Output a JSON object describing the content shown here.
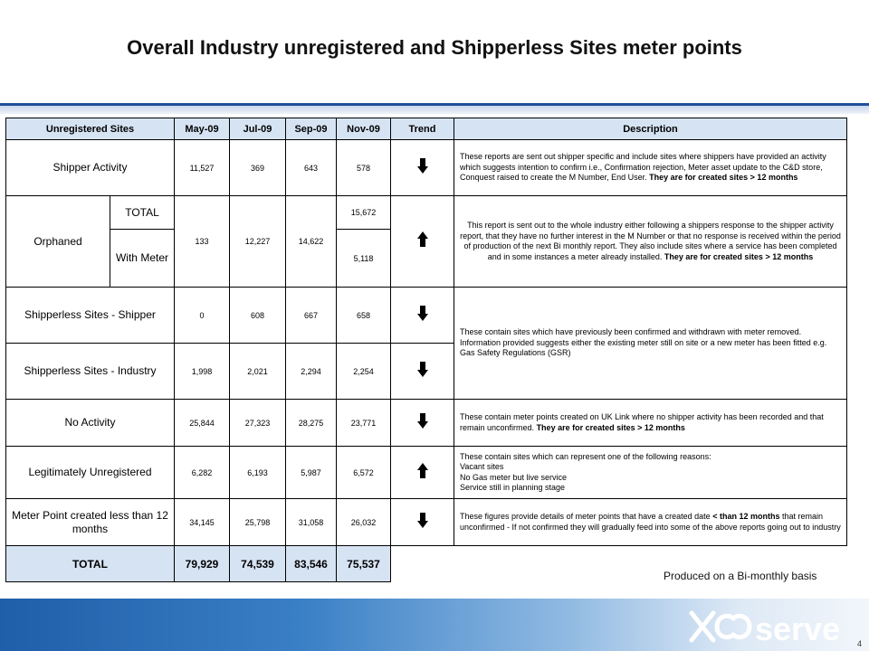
{
  "title": "Overall Industry unregistered and Shipperless Sites meter points",
  "headers": {
    "sites": "Unregistered  Sites",
    "months": [
      "May-09",
      "Jul-09",
      "Sep-09",
      "Nov-09"
    ],
    "trend": "Trend",
    "description": "Description"
  },
  "rows": {
    "shipper_activity": {
      "label": "Shipper Activity",
      "values": [
        "11,527",
        "369",
        "643",
        "578"
      ],
      "trend": "down-arrow-icon",
      "desc": "These reports are sent out shipper specific and include sites where shippers have provided an activity which suggests intention to confirm i.e., Confirmation rejection, Meter asset update to the C&D store, Conquest raised to create the M Number, End User.",
      "desc_bold": "They are for created sites > 12 months"
    },
    "orphaned": {
      "label": "Orphaned",
      "sub_total": "TOTAL",
      "sub_meter": "With Meter",
      "may": "133",
      "jul": "12,227",
      "sep": "14,622",
      "nov_total": "15,672",
      "nov_meter": "5,118",
      "trend": "up-arrow-icon",
      "desc": "This report is sent out to the whole industry either following a shippers response to the shipper activity report, that they have no further interest in the M Number or that no response is received within the period of production of the next Bi monthly report. They also include sites where a service has been completed and in some instances a meter already installed.",
      "desc_bold": "They are for created sites > 12 months"
    },
    "shipperless_shipper": {
      "label": "Shipperless Sites - Shipper",
      "values": [
        "0",
        "608",
        "667",
        "658"
      ],
      "trend": "down-arrow-icon"
    },
    "shipperless_industry": {
      "label": "Shipperless Sites - Industry",
      "values": [
        "1,998",
        "2,021",
        "2,294",
        "2,254"
      ],
      "trend": "down-arrow-icon"
    },
    "shipperless_desc": "These contain sites which have previously been confirmed and withdrawn with meter removed. Information provided suggests either the existing meter still on site or a new meter has been fitted e.g. Gas Safety Regulations (GSR)",
    "no_activity": {
      "label": "No Activity",
      "values": [
        "25,844",
        "27,323",
        "28,275",
        "23,771"
      ],
      "trend": "down-arrow-icon",
      "desc": "These contain meter points created on UK Link where no shipper activity has been recorded and that remain unconfirmed.",
      "desc_bold": "They are for created sites > 12 months"
    },
    "legit": {
      "label": "Legitimately Unregistered",
      "values": [
        "6,282",
        "6,193",
        "5,987",
        "6,572"
      ],
      "trend": "up-arrow-icon",
      "desc_lines": [
        "These contain sites which can represent one of the following reasons:",
        "Vacant sites",
        "No Gas meter but live service",
        "Service still in planning stage"
      ]
    },
    "meter_point": {
      "label": "Meter Point created less than 12 months",
      "values": [
        "34,145",
        "25,798",
        "31,058",
        "26,032"
      ],
      "trend": "down-arrow-icon",
      "desc_a": "These figures provide details of meter points that have a created date",
      "desc_bold": "< than 12 months",
      "desc_b": "that remain unconfirmed - If not confirmed they will gradually feed into some of the above reports going out to industry"
    },
    "total": {
      "label": "TOTAL",
      "values": [
        "79,929",
        "74,539",
        "83,546",
        "75,537"
      ]
    }
  },
  "footnote": "Produced on a Bi-monthly basis",
  "logo_text": "xoserve",
  "page_number": "4",
  "colors": {
    "header_fill": "#d6e3f3",
    "rule": "#1f4e9a",
    "brand_blue": "#1f5ea9",
    "logo_white": "#ffffff"
  }
}
